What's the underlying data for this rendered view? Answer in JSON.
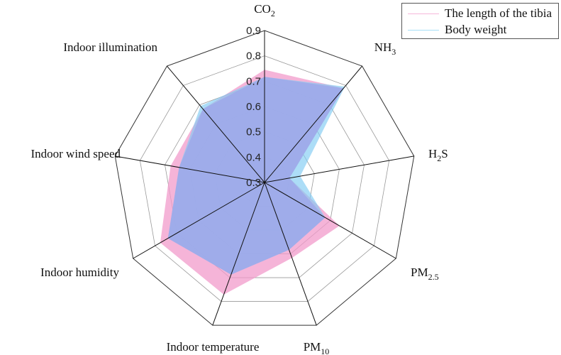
{
  "chart_data": {
    "type": "radar",
    "title": "",
    "categories": [
      "CO2",
      "NH3",
      "H2S",
      "PM2.5",
      "PM10",
      "Indoor temperature",
      "Indoor humidity",
      "Indoor wind speed",
      "Indoor illumination"
    ],
    "category_labels": [
      {
        "main": "CO",
        "sub": "2"
      },
      {
        "main": "NH",
        "sub": "3"
      },
      {
        "main": "H",
        "sub": "2",
        "tail": "S"
      },
      {
        "main": "PM",
        "sub": "2.5"
      },
      {
        "main": "PM",
        "sub": "10"
      },
      {
        "main": "Indoor temperature"
      },
      {
        "main": "Indoor humidity"
      },
      {
        "main": "Indoor wind speed"
      },
      {
        "main": "Indoor illumination"
      }
    ],
    "series": [
      {
        "name": "The length of the tibia",
        "color": "#F29BCB",
        "values": [
          0.745,
          0.786,
          0.4,
          0.642,
          0.617,
          0.771,
          0.776,
          0.677,
          0.679
        ]
      },
      {
        "name": "Body weight",
        "color": "#8FD3F5",
        "values": [
          0.717,
          0.794,
          0.443,
          0.577,
          0.583,
          0.687,
          0.741,
          0.643,
          0.694
        ]
      }
    ],
    "rlim": [
      0.3,
      0.9
    ],
    "ticks": [
      "0.3",
      "0.4",
      "0.5",
      "0.6",
      "0.7",
      "0.8",
      "0.9"
    ],
    "grid": true,
    "legend_position": "top-right"
  },
  "legend": {
    "items": [
      {
        "label": "The length of the tibia",
        "color": "#F29BCB"
      },
      {
        "label": "Body weight",
        "color": "#8FD3F5"
      }
    ]
  }
}
